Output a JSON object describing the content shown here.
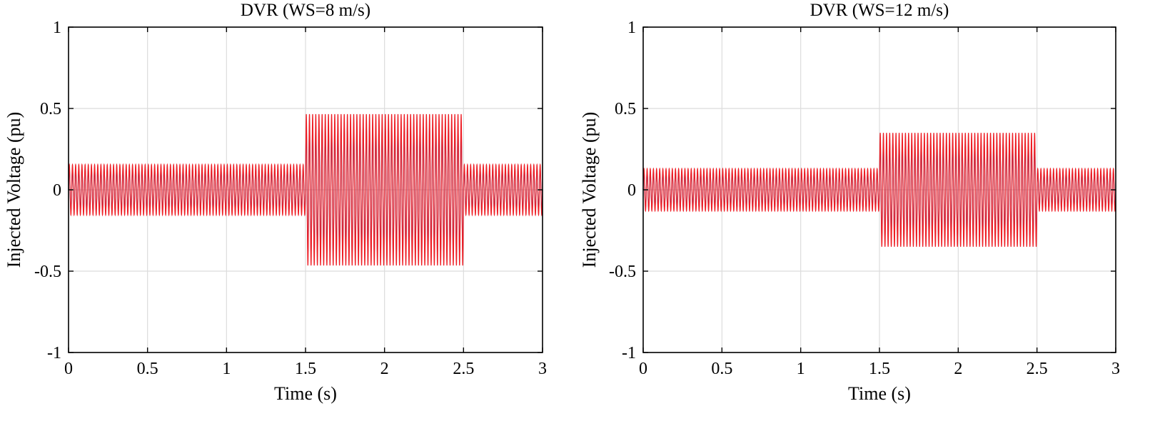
{
  "chart_data": [
    {
      "type": "line",
      "title": "DVR (WS=8 m/s)",
      "xlabel": "Time (s)",
      "ylabel": "Injected Voltage (pu)",
      "xlim": [
        0,
        3
      ],
      "ylim": [
        -1,
        1
      ],
      "xticks": [
        0,
        0.5,
        1,
        1.5,
        2,
        2.5,
        3
      ],
      "xtick_labels": [
        "0",
        "0.5",
        "1",
        "1.5",
        "2",
        "2.5",
        "3"
      ],
      "yticks": [
        -1,
        -0.5,
        0,
        0.5,
        1
      ],
      "ytick_labels": [
        "-1",
        "-0.5",
        "0",
        "0.5",
        "1"
      ],
      "grid": true,
      "frequency_hz": 50,
      "series": [
        {
          "color": "#3a4fa8",
          "segments": [
            {
              "t_start": 0,
              "t_end": 1.5,
              "amplitude": 0.13
            },
            {
              "t_start": 1.5,
              "t_end": 2.5,
              "amplitude": 0.39
            },
            {
              "t_start": 2.5,
              "t_end": 3,
              "amplitude": 0.13
            }
          ]
        },
        {
          "color": "#ee1d24",
          "segments": [
            {
              "t_start": 0,
              "t_end": 1.5,
              "amplitude": 0.155
            },
            {
              "t_start": 1.5,
              "t_end": 2.5,
              "amplitude": 0.465
            },
            {
              "t_start": 2.5,
              "t_end": 3,
              "amplitude": 0.155
            }
          ]
        }
      ]
    },
    {
      "type": "line",
      "title": "DVR (WS=12 m/s)",
      "xlabel": "Time (s)",
      "ylabel": "Injected Voltage (pu)",
      "xlim": [
        0,
        3
      ],
      "ylim": [
        -1,
        1
      ],
      "xticks": [
        0,
        0.5,
        1,
        1.5,
        2,
        2.5,
        3
      ],
      "xtick_labels": [
        "0",
        "0.5",
        "1",
        "1.5",
        "2",
        "2.5",
        "3"
      ],
      "yticks": [
        -1,
        -0.5,
        0,
        0.5,
        1
      ],
      "ytick_labels": [
        "-1",
        "-0.5",
        "0",
        "0.5",
        "1"
      ],
      "grid": true,
      "frequency_hz": 50,
      "series": [
        {
          "color": "#3a4fa8",
          "segments": [
            {
              "t_start": 0,
              "t_end": 1.5,
              "amplitude": 0.11
            },
            {
              "t_start": 1.5,
              "t_end": 2.5,
              "amplitude": 0.29
            },
            {
              "t_start": 2.5,
              "t_end": 3,
              "amplitude": 0.11
            }
          ]
        },
        {
          "color": "#ee1d24",
          "segments": [
            {
              "t_start": 0,
              "t_end": 1.5,
              "amplitude": 0.13
            },
            {
              "t_start": 1.5,
              "t_end": 2.5,
              "amplitude": 0.35
            },
            {
              "t_start": 2.5,
              "t_end": 3,
              "amplitude": 0.13
            }
          ]
        }
      ]
    }
  ]
}
